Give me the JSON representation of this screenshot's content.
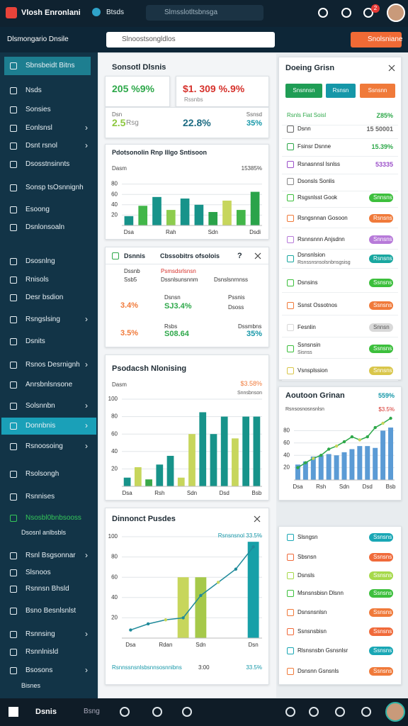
{
  "topbar": {
    "brand": "Vlosh Enronlani",
    "tab": "Btsds",
    "search": "Slmsslotltsbnsga",
    "badge": "2"
  },
  "header": {
    "title": "Dlsmongario Dnsile",
    "search": "Slnoostsongldlos",
    "button": "Snolsniane"
  },
  "sidebar": {
    "items": [
      "Sbnsbeidt Bitns",
      "Nsds",
      "Sonsies",
      "Eonlsnsl",
      "Dsnt rsnol",
      "Dsosstnsinnts",
      "Sonsp tsOsnnignh",
      "Esoong",
      "Dsnlonsoaln",
      "Dsosnlng",
      "Rnisols",
      "Desr bsdion",
      "Rsngslsing",
      "Dsnits",
      "Rsnos Desrnignh",
      "Anrsbnlsnsone",
      "Solsnnbn",
      "Donnbnis",
      "Rsnoosoing",
      "Rsolsongh",
      "Rsnnises",
      "Nsosbl0bnbsooss",
      "Dsosnl anlbsbls",
      "Rsnl Bsgsonnar",
      "Slsnoos",
      "Rsnnsn Bhsld",
      "Bsno Besnlsnlst",
      "Rsnnsing",
      "Rsnnlnisld",
      "Bsosons",
      "Bisnes"
    ]
  },
  "summary": {
    "title": "Sonsotl Dlsnis",
    "stat1": "205 %9%",
    "stat2": "$1. 309 %.9%",
    "stat3": "2.5",
    "stat3_label": "Rsg",
    "stat4": "22.8%",
    "stat5_label": "Dsn",
    "stat5": "Rssnbs",
    "stat6_label": "Ssnsd",
    "stat6": "35%"
  },
  "compare": {
    "title": "Dsnnis",
    "subtitle": "Cbssobitrs ofsolois",
    "help": "?",
    "cells": [
      "Dssnb",
      "Ssb5",
      "Psmsdsrlsnsn",
      "Dssnlsunsnnm",
      "Dsnslsnrnnss",
      "3.4%",
      "Dsnsn",
      "SJ3.4%",
      "Pssnis",
      "Dsoss",
      "3.5%",
      "Rsbs",
      "S08.64",
      "Dssmbns",
      "35%"
    ]
  },
  "panel": {
    "title": "Doeing Grisn",
    "buttons": [
      "Snsnnsn",
      "Rsnsn",
      "Ssnsnn"
    ],
    "rows": [
      {
        "label": "Rsnls Fiat Soisl",
        "value": "Z85%",
        "style": "text",
        "color": "#2ea84a"
      },
      {
        "label": "Dsnn",
        "value": "15 50001",
        "style": "text",
        "color": "#666666"
      },
      {
        "label": "Fsinsr Dsnne",
        "value": "15.39%",
        "style": "text",
        "color": "#2ea84a"
      },
      {
        "label": "Rsnasnnsl Isnlss",
        "value": "53335",
        "style": "text",
        "color": "#9b4fc9"
      },
      {
        "label": "Dsonsls Sonlis"
      },
      {
        "label": "Rsgsnlsst Gook",
        "value": "Snnsns",
        "style": "pill",
        "color": "#3cbf3c"
      },
      {
        "label": "Rsngsnnan Gosoon",
        "value": "Rsnsns",
        "style": "pill",
        "color": "#f07a3a"
      },
      {
        "label": "Rsnnsnnn Anjsdnn",
        "value": "Snnsns",
        "style": "pill",
        "color": "#b77ad9"
      },
      {
        "label": "Dsnsnlsion",
        "sub": "Rsnssnsnsolsnbnsgsisg",
        "value": "Rsnsns",
        "style": "pill",
        "color": "#19a7a0"
      },
      {
        "label": "Dsnsins",
        "value": "Ssnsns",
        "style": "pill",
        "color": "#3cbf3c"
      },
      {
        "label": "Ssnst Ossotnos",
        "value": "Ssnsns",
        "style": "pill",
        "color": "#f07a3a"
      },
      {
        "label": "Fesnlin",
        "value": "Snnsn",
        "style": "pill",
        "color": "#d9d9d9"
      },
      {
        "label": "Ssnsnsin",
        "sub": "Sisnss",
        "value": "Ssnsns",
        "style": "pill",
        "color": "#3cbf3c"
      },
      {
        "label": "Vsnsplssion",
        "value": "Snnsns",
        "style": "pill",
        "color": "#d9c64a"
      }
    ]
  },
  "list": {
    "rows": [
      {
        "label": "Slsngsn",
        "value": "Ssnsns",
        "color": "#19a7b5"
      },
      {
        "label": "Sbsnsn",
        "value": "Ssnsns",
        "color": "#f06a3a"
      },
      {
        "label": "Dsnsls",
        "value": "Ssnsns",
        "color": "#a6d94a"
      },
      {
        "label": "Msnsnsbisn Dlsnn",
        "value": "Ssnsns",
        "color": "#3cbf3c"
      },
      {
        "label": "Dsnsnsnlsn",
        "value": "Ssnsns",
        "color": "#f07a3a"
      },
      {
        "label": "Ssnsnsbisn",
        "value": "Ssnsns",
        "color": "#f06a3a"
      },
      {
        "label": "Rlsnsnsbn Gsnsnlsr",
        "value": "Ssnsns",
        "color": "#19a7b5"
      },
      {
        "label": "Dsnsnn Gsnsnls",
        "value": "Ssnsns",
        "color": "#f07a3a"
      }
    ]
  },
  "charts": [
    {
      "type": "bar",
      "title": "Pdotsonolin Rnp lllgo Sntisoon",
      "y_label": "Dasm",
      "corner": "15385%",
      "ylim": [
        0,
        100
      ],
      "yticks": [
        20,
        40,
        60,
        80
      ],
      "grid": true,
      "categories": [
        "Dsa",
        null,
        null,
        "Rah",
        null,
        null,
        "Sdn",
        null,
        null,
        "Dsdi"
      ],
      "values": [
        18,
        38,
        55,
        30,
        52,
        40,
        26,
        48,
        30,
        65
      ],
      "colors": [
        "#17938a",
        "#42b649",
        "#17938a",
        "#8dcc4e",
        "#17938a",
        "#17938a",
        "#2aa34a",
        "#c7d65c",
        "#42b649",
        "#2aa34a"
      ]
    },
    {
      "type": "bar",
      "title": "Psodacsh Nlonising",
      "y_label": "Dasm",
      "corner": "$3.58%",
      "corner_sub": "Snnsbnson",
      "ylim": [
        0,
        100
      ],
      "yticks": [
        20,
        40,
        60,
        80,
        100
      ],
      "grid": true,
      "categories": [
        "Dsa",
        null,
        null,
        "Rsh",
        null,
        null,
        "Sdn",
        null,
        null,
        "Dsd",
        null,
        null,
        "Bsb"
      ],
      "values": [
        10,
        22,
        8,
        25,
        35,
        10,
        60,
        85,
        60,
        80,
        55,
        80,
        80
      ],
      "colors": [
        "#17938a",
        "#c7d65c",
        "#3aa84a",
        "#17938a",
        "#17938a",
        "#c7d65c",
        "#c7d65c",
        "#17938a",
        "#17938a",
        "#17938a",
        "#c7d65c",
        "#17938a",
        "#17938a"
      ]
    },
    {
      "type": "bar",
      "title": "Dinnonct Pusdes",
      "corner": "Rsnsnsnol 33.5%",
      "ylim": [
        0,
        100
      ],
      "yticks": [
        20,
        40,
        60,
        80,
        100
      ],
      "grid": true,
      "categories": [
        "Dsa",
        null,
        "Rdan",
        null,
        "Sdn",
        null,
        null,
        "Dsn"
      ],
      "values": [
        null,
        null,
        null,
        60,
        60,
        null,
        null,
        95
      ],
      "colors": [
        "#17938a",
        "#17938a",
        "#17938a",
        "#c7d65c",
        "#a6c94a",
        "#17938a",
        "#17938a",
        "#17a0a8"
      ],
      "line": {
        "color": "#1f8a9a",
        "values": [
          8,
          14,
          18,
          20,
          42,
          55,
          68,
          90
        ]
      },
      "footer": "Rsnnssnsnlsbsnnsosnnibns",
      "footer_mid": "3:00",
      "footer_right": "33.5%"
    },
    {
      "type": "bar",
      "title": "Aoutoon Grinan",
      "corner": "559%",
      "sub_left": "Rsnsosnosnsnlsn",
      "sub_right": "$3.5%",
      "ylim": [
        0,
        100
      ],
      "yticks": [
        20,
        40,
        60,
        80
      ],
      "grid": true,
      "categories": [
        "Dsa",
        null,
        null,
        "Rsh",
        null,
        null,
        "Sdn",
        null,
        null,
        "Dsd",
        null,
        null,
        "Bsb"
      ],
      "values": [
        25,
        30,
        38,
        40,
        42,
        40,
        45,
        50,
        55,
        55,
        52,
        80,
        85
      ],
      "colors": [
        "#5b9bd5",
        "#5b9bd5",
        "#5b9bd5",
        "#5b9bd5",
        "#5b9bd5",
        "#5b9bd5",
        "#5b9bd5",
        "#5b9bd5",
        "#5b9bd5",
        "#5b9bd5",
        "#5b9bd5",
        "#5b9bd5",
        "#5b9bd5"
      ],
      "line": {
        "color": "#2ea84a",
        "values": [
          20,
          28,
          35,
          40,
          50,
          55,
          62,
          70,
          65,
          70,
          85,
          92,
          100
        ]
      }
    }
  ],
  "bottombar": {
    "home": "Dsnis",
    "second": "Bsng"
  }
}
